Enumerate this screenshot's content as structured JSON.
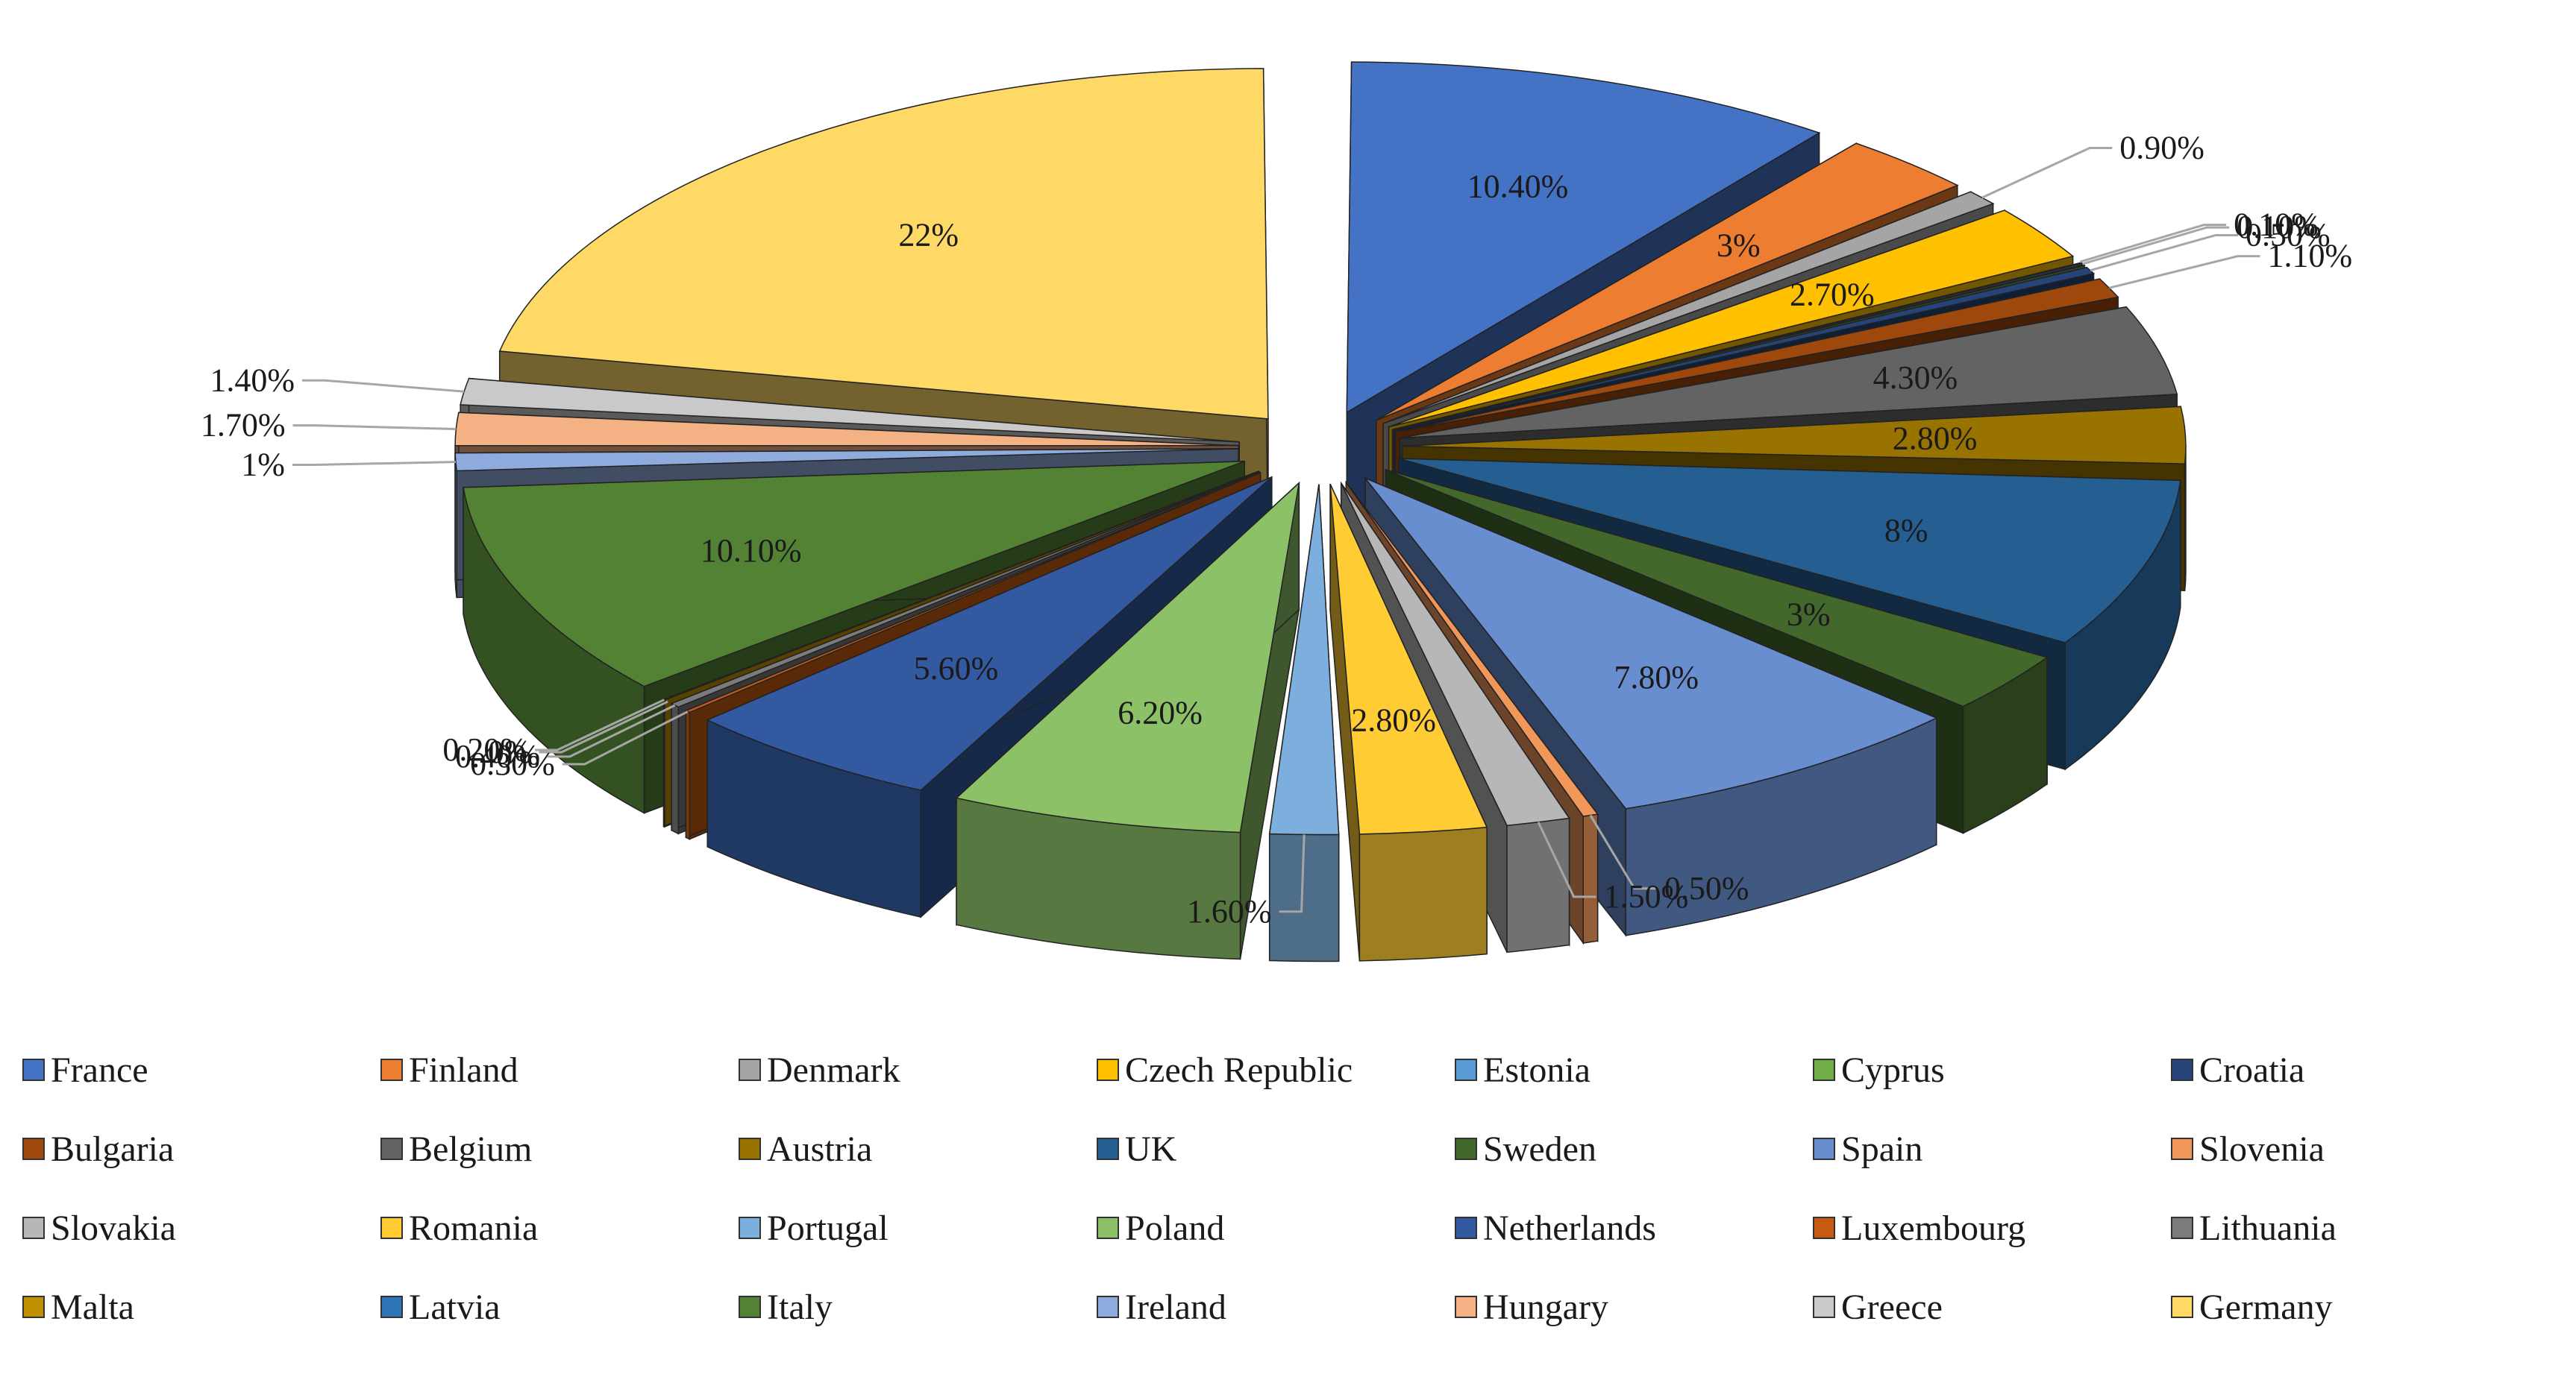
{
  "chart_data": {
    "type": "pie",
    "title": "",
    "style": "exploded-3d",
    "slices": [
      {
        "name": "France",
        "value": 10.4,
        "label": "10.40%",
        "color": "#4472C4"
      },
      {
        "name": "Finland",
        "value": 3.0,
        "label": "3%",
        "color": "#ED7D31"
      },
      {
        "name": "Denmark",
        "value": 0.9,
        "label": "0.90%",
        "color": "#A5A5A5"
      },
      {
        "name": "Czech Republic",
        "value": 2.7,
        "label": "2.70%",
        "color": "#FFC000"
      },
      {
        "name": "Estonia",
        "value": 0.1,
        "label": "0.10%",
        "color": "#5B9BD5"
      },
      {
        "name": "Cyprus",
        "value": 0.1,
        "label": "0.10%",
        "color": "#70AD47"
      },
      {
        "name": "Croatia",
        "value": 0.5,
        "label": "0.50%",
        "color": "#264478"
      },
      {
        "name": "Bulgaria",
        "value": 1.1,
        "label": "1.10%",
        "color": "#9E480E"
      },
      {
        "name": "Belgium",
        "value": 4.3,
        "label": "4.30%",
        "color": "#636363"
      },
      {
        "name": "Austria",
        "value": 2.8,
        "label": "2.80%",
        "color": "#997300"
      },
      {
        "name": "UK",
        "value": 8.0,
        "label": "8%",
        "color": "#255E91"
      },
      {
        "name": "Sweden",
        "value": 3.0,
        "label": "3%",
        "color": "#43682B"
      },
      {
        "name": "Spain",
        "value": 7.8,
        "label": "7.80%",
        "color": "#698ED0"
      },
      {
        "name": "Slovenia",
        "value": 0.5,
        "label": "0.50%",
        "color": "#F1975A"
      },
      {
        "name": "Slovakia",
        "value": 1.5,
        "label": "1.50%",
        "color": "#B7B7B7"
      },
      {
        "name": "Romania",
        "value": 2.8,
        "label": "2.80%",
        "color": "#FFCD33"
      },
      {
        "name": "Portugal",
        "value": 1.6,
        "label": "1.60%",
        "color": "#7CAFDD"
      },
      {
        "name": "Poland",
        "value": 6.2,
        "label": "6.20%",
        "color": "#8CC168"
      },
      {
        "name": "Netherlands",
        "value": 5.6,
        "label": "5.60%",
        "color": "#335AA1"
      },
      {
        "name": "Luxembourg",
        "value": 0.3,
        "label": "0.30%",
        "color": "#C55A11"
      },
      {
        "name": "Lithuania",
        "value": 0.4,
        "label": "0.40%",
        "color": "#7B7B7B"
      },
      {
        "name": "Malta",
        "value": 0.0,
        "label": "0%",
        "color": "#BF9000"
      },
      {
        "name": "Latvia",
        "value": 0.2,
        "label": "0.20%",
        "color": "#2E75B6"
      },
      {
        "name": "Italy",
        "value": 10.1,
        "label": "10.10%",
        "color": "#548235"
      },
      {
        "name": "Ireland",
        "value": 1.0,
        "label": "1%",
        "color": "#8FAADC"
      },
      {
        "name": "Hungary",
        "value": 1.7,
        "label": "1.70%",
        "color": "#F4B183"
      },
      {
        "name": "Greece",
        "value": 1.4,
        "label": "1.40%",
        "color": "#C9C9C9"
      },
      {
        "name": "Germany",
        "value": 22.0,
        "label": "22%",
        "color": "#FFD966"
      }
    ],
    "legend": {
      "position": "bottom",
      "entries": [
        "France",
        "Finland",
        "Denmark",
        "Czech Republic",
        "Estonia",
        "Cyprus",
        "Croatia",
        "Bulgaria",
        "Belgium",
        "Austria",
        "UK",
        "Sweden",
        "Spain",
        "Slovenia",
        "Slovakia",
        "Romania",
        "Portugal",
        "Poland",
        "Netherlands",
        "Luxembourg",
        "Lithuania",
        "Malta",
        "Latvia",
        "Italy",
        "Ireland",
        "Hungary",
        "Greece",
        "Germany"
      ]
    }
  }
}
